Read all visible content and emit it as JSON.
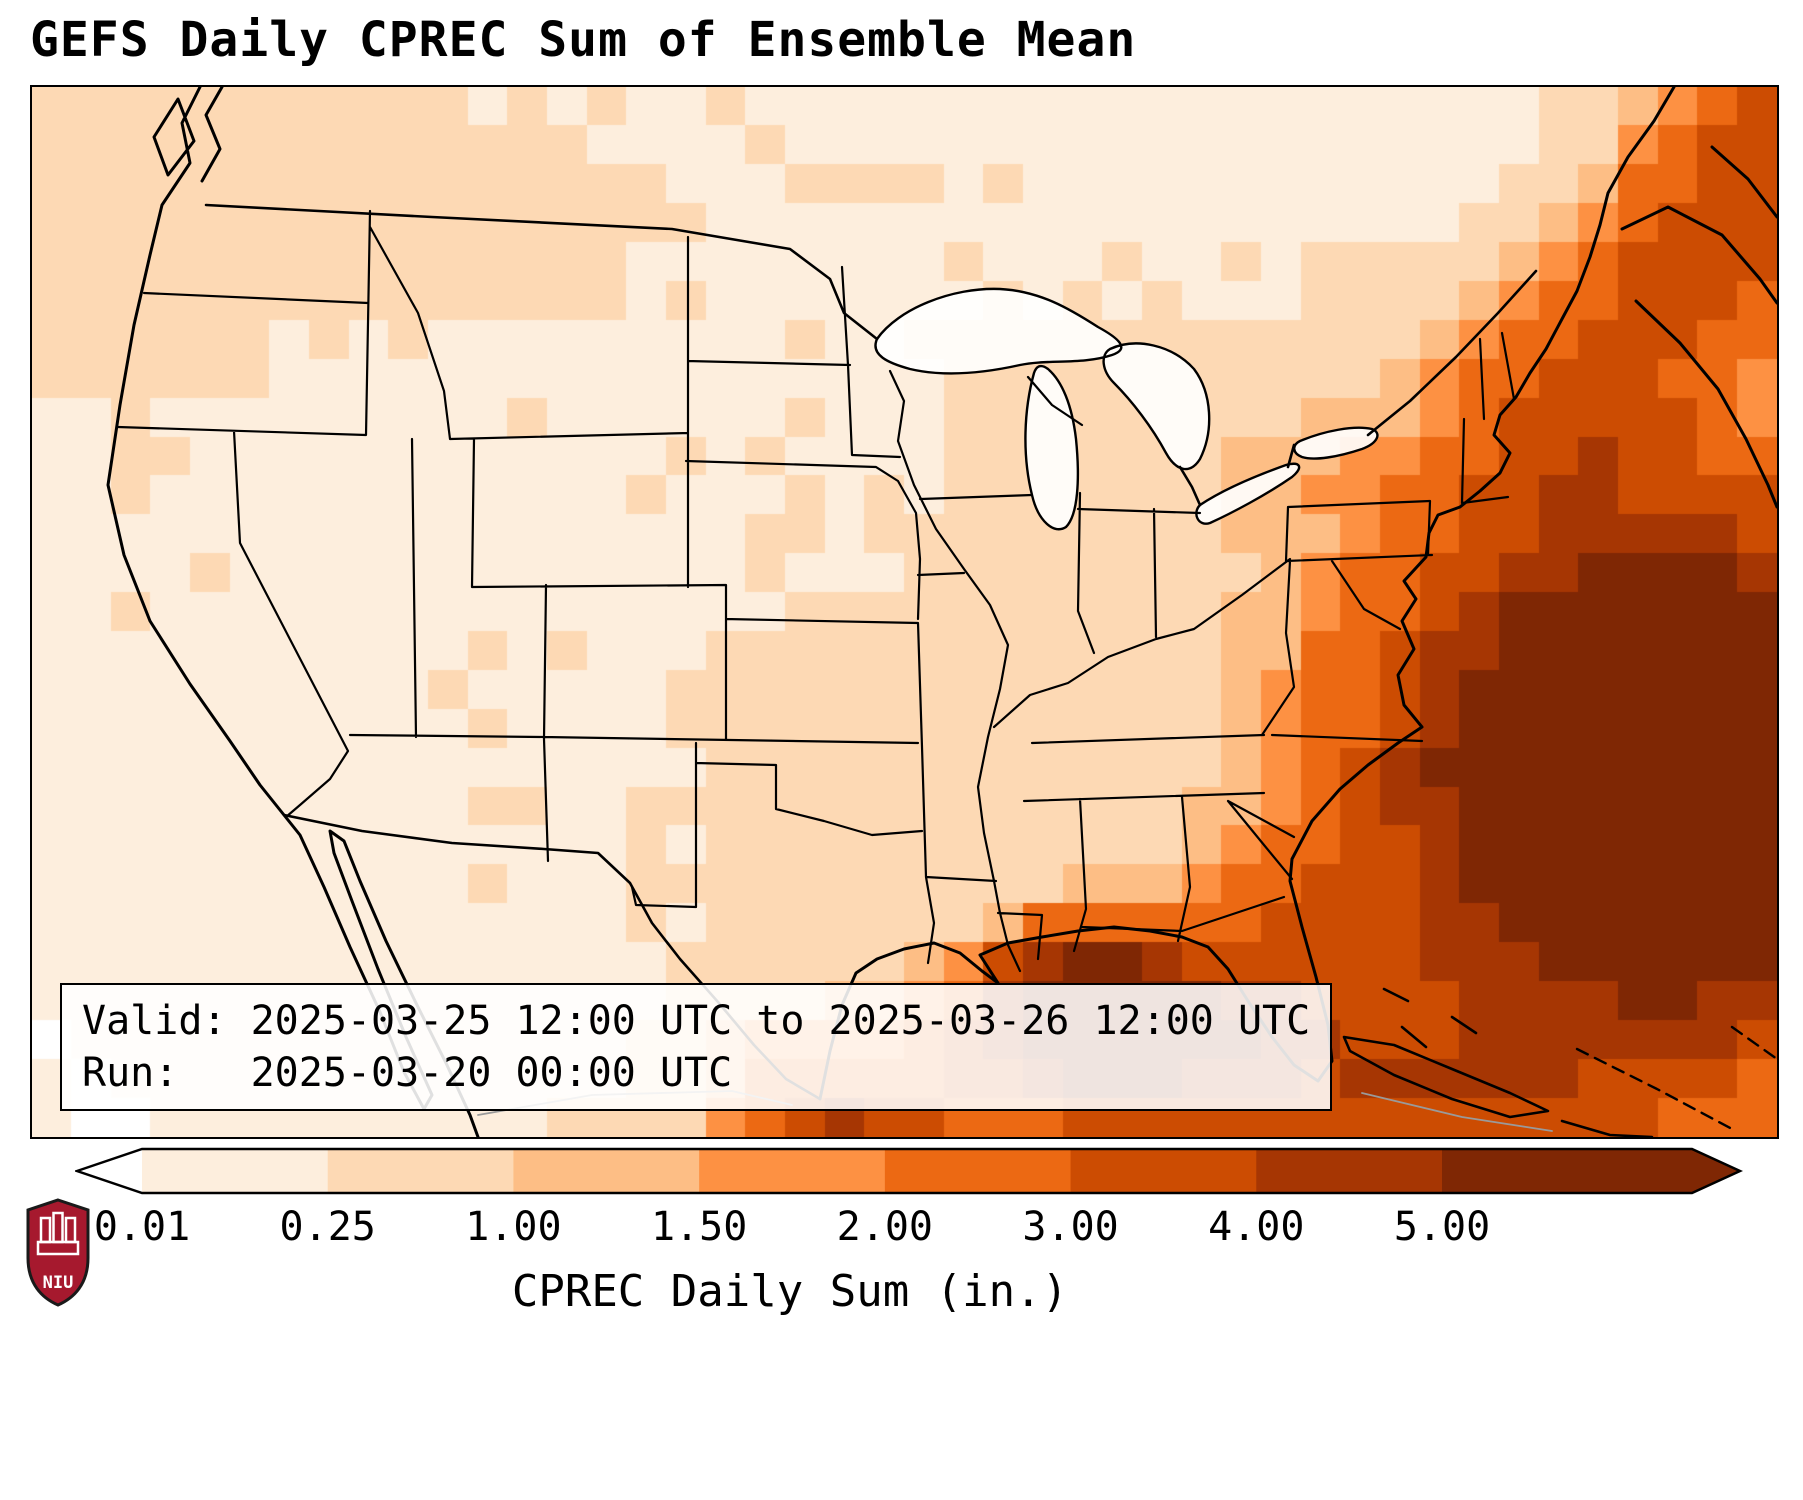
{
  "title": "GEFS Daily CPREC Sum of Ensemble Mean",
  "info_box": {
    "valid_line": "Valid: 2025-03-25 12:00 UTC to 2025-03-26 12:00 UTC",
    "run_line": "Run:   2025-03-20 00:00 UTC"
  },
  "colorbar": {
    "label": "CPREC Daily Sum (in.)",
    "tick_labels": [
      "0.01",
      "0.25",
      "1.00",
      "1.50",
      "2.00",
      "3.00",
      "4.00",
      "5.00"
    ],
    "under_color": "#ffffff",
    "over_color": "#7f2704",
    "segment_colors": [
      "#fdeedd",
      "#fdd9b4",
      "#fdbe85",
      "#fd9143",
      "#ec6913",
      "#cc4c02",
      "#a63603"
    ]
  },
  "logo": {
    "text": "NIU",
    "shield_color": "#a6192e"
  },
  "chart_data": {
    "type": "heatmap",
    "title": "GEFS Daily CPREC Sum of Ensemble Mean",
    "units": "in.",
    "variable": "CPREC Daily Sum",
    "valid": "2025-03-25 12:00 UTC to 2025-03-26 12:00 UTC",
    "run": "2025-03-20 00:00 UTC",
    "value_boundaries": [
      0.01,
      0.25,
      1.0,
      1.5,
      2.0,
      3.0,
      4.0,
      5.0
    ],
    "colorbar_extend": "both",
    "grid": {
      "cols": 44,
      "rows": 27
    },
    "noise": {
      "threshold": 0.55,
      "amp": 0.17
    },
    "blobs": [
      [
        0.935,
        0.66,
        0.115,
        0.19,
        9.0
      ],
      [
        0.875,
        0.305,
        0.05,
        0.07,
        2.2
      ],
      [
        0.945,
        0.175,
        0.05,
        0.065,
        2.9
      ],
      [
        1.005,
        0.05,
        0.055,
        0.07,
        3.4
      ],
      [
        0.425,
        0.93,
        0.035,
        0.05,
        1.3
      ],
      [
        0.468,
        0.995,
        0.035,
        0.04,
        2.6
      ],
      [
        0.55,
        0.935,
        0.06,
        0.055,
        1.6
      ],
      [
        0.605,
        0.875,
        0.045,
        0.05,
        6.0
      ],
      [
        0.66,
        0.92,
        0.05,
        0.05,
        2.4
      ],
      [
        0.72,
        0.835,
        0.05,
        0.065,
        2.0
      ],
      [
        0.785,
        0.97,
        0.09,
        0.06,
        2.6
      ],
      [
        0.52,
        1.02,
        0.1,
        0.045,
        1.4
      ],
      [
        0.42,
        0.585,
        0.027,
        0.024,
        0.6
      ],
      [
        0.56,
        0.74,
        0.2,
        0.16,
        0.26
      ],
      [
        0.48,
        0.5,
        0.28,
        0.22,
        0.13
      ],
      [
        0.08,
        0.07,
        0.09,
        0.09,
        0.38
      ],
      [
        0.19,
        0.13,
        0.11,
        0.1,
        0.22
      ],
      [
        0.045,
        0.3,
        0.05,
        0.13,
        0.2
      ],
      [
        0.36,
        0.1,
        0.16,
        0.09,
        0.15
      ],
      [
        0.73,
        0.36,
        0.045,
        0.055,
        0.55
      ],
      [
        0.6,
        0.25,
        0.11,
        0.09,
        0.18
      ],
      [
        0.64,
        0.45,
        0.09,
        0.09,
        0.2
      ]
    ]
  }
}
